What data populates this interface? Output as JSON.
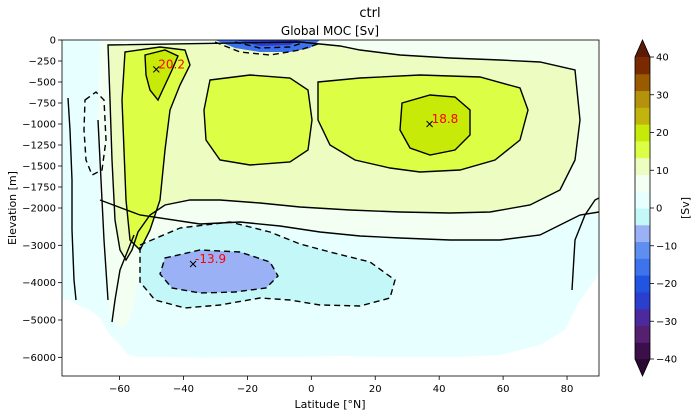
{
  "chart_data": {
    "type": "heatmap",
    "suptitle": "ctrl",
    "title": "Global MOC [Sv]",
    "xlabel": "Latitude [°N]",
    "ylabel": "Elevation [m]",
    "xlim": [
      -78,
      90
    ],
    "xticks": [
      -60,
      -40,
      -20,
      0,
      20,
      40,
      60,
      80
    ],
    "xtick_labels": [
      "−60",
      "−40",
      "−20",
      "0",
      "20",
      "40",
      "60",
      "80"
    ],
    "upper_panel": {
      "ylim": [
        -2000,
        0
      ],
      "yticks": [
        0,
        -250,
        -500,
        -750,
        -1000,
        -1250,
        -1500,
        -1750,
        -2000
      ],
      "ytick_labels": [
        "0",
        "−250",
        "−500",
        "−750",
        "−1000",
        "−1250",
        "−1500",
        "−1750",
        "−2000"
      ]
    },
    "lower_panel": {
      "ylim": [
        -6500,
        -2000
      ],
      "yticks": [
        -3000,
        -4000,
        -5000,
        -6000
      ],
      "ytick_labels": [
        "−3000",
        "−4000",
        "−5000",
        "−6000"
      ]
    },
    "colorbar": {
      "label": "[Sv]",
      "min": -40,
      "max": 40,
      "step": 5,
      "ticks": [
        40,
        30,
        20,
        10,
        0,
        -10,
        -20,
        -30,
        -40
      ],
      "tick_labels": [
        "40",
        "30",
        "20",
        "10",
        "0",
        "−10",
        "−20",
        "−30",
        "−40"
      ],
      "extend": "both",
      "colors": [
        "#3a0f4a",
        "#552070",
        "#4b2aa0",
        "#2b3fcf",
        "#1f55e0",
        "#3e73ee",
        "#5e8ef0",
        "#9ab2f5",
        "#c4f8f8",
        "#e8ffff",
        "#f3fff3",
        "#edfcc0",
        "#dcff45",
        "#c8ea08",
        "#c2b40c",
        "#b4920c",
        "#9a5a00",
        "#7a2a00"
      ],
      "under_color": "#2a0a30",
      "over_color": "#5a1a05"
    },
    "annotations": [
      {
        "label": "20.2",
        "lat": -48.5,
        "depth": -350,
        "value": 20.2
      },
      {
        "label": "18.8",
        "lat": 37,
        "depth": -1000,
        "value": 18.8
      },
      {
        "label": "-13.9",
        "lat": -37,
        "depth": -3500,
        "value": -13.9
      }
    ]
  }
}
